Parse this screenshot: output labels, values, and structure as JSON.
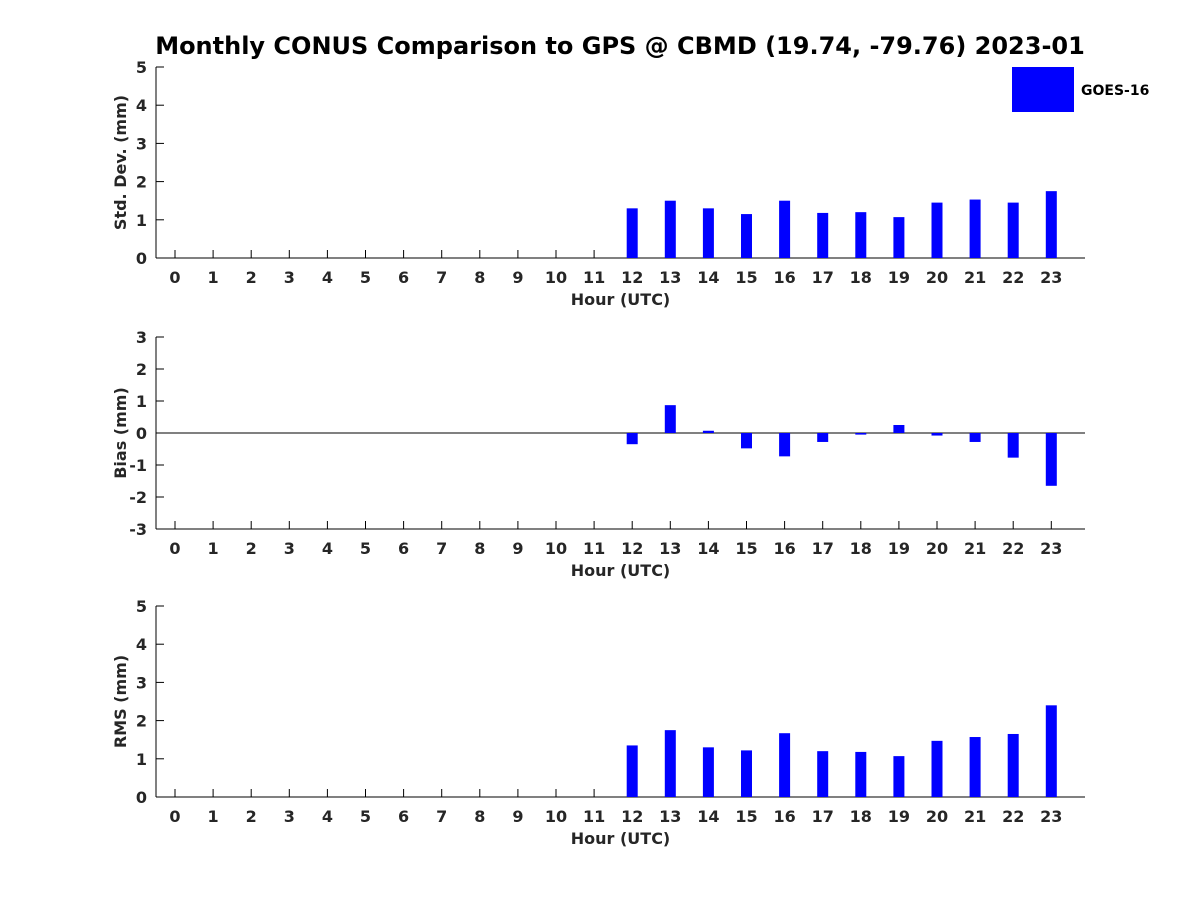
{
  "title": "Monthly CONUS Comparison to GPS @ CBMD (19.74, -79.76) 2023-01",
  "legend": {
    "label": "GOES-16",
    "placement": "top-right",
    "color": "#0000ff"
  },
  "colors": {
    "bar": "#0000ff",
    "axis": "#000000",
    "text": "#262626"
  },
  "chart_data": [
    {
      "type": "bar",
      "xlabel": "Hour (UTC)",
      "ylabel": "Std. Dev. (mm)",
      "ylim": [
        0,
        5
      ],
      "yticks": [
        0,
        1,
        2,
        3,
        4,
        5
      ],
      "grid": false,
      "categories": [
        "0",
        "1",
        "2",
        "3",
        "4",
        "5",
        "6",
        "7",
        "8",
        "9",
        "10",
        "11",
        "12",
        "13",
        "14",
        "15",
        "16",
        "17",
        "18",
        "19",
        "20",
        "21",
        "22",
        "23"
      ],
      "series": [
        {
          "name": "GOES-16",
          "values": [
            null,
            null,
            null,
            null,
            null,
            null,
            null,
            null,
            null,
            null,
            null,
            null,
            1.3,
            1.5,
            1.3,
            1.15,
            1.5,
            1.18,
            1.2,
            1.07,
            1.45,
            1.53,
            1.45,
            1.75
          ]
        }
      ]
    },
    {
      "type": "bar",
      "xlabel": "Hour (UTC)",
      "ylabel": "Bias (mm)",
      "ylim": [
        -3,
        3
      ],
      "yticks": [
        -3,
        -2,
        -1,
        0,
        1,
        2,
        3
      ],
      "grid": false,
      "zero_line": true,
      "categories": [
        "0",
        "1",
        "2",
        "3",
        "4",
        "5",
        "6",
        "7",
        "8",
        "9",
        "10",
        "11",
        "12",
        "13",
        "14",
        "15",
        "16",
        "17",
        "18",
        "19",
        "20",
        "21",
        "22",
        "23"
      ],
      "series": [
        {
          "name": "GOES-16",
          "values": [
            null,
            null,
            null,
            null,
            null,
            null,
            null,
            null,
            null,
            null,
            null,
            null,
            -0.35,
            0.87,
            0.07,
            -0.48,
            -0.73,
            -0.28,
            -0.05,
            0.25,
            -0.08,
            -0.28,
            -0.77,
            -1.65
          ]
        }
      ]
    },
    {
      "type": "bar",
      "xlabel": "Hour (UTC)",
      "ylabel": "RMS (mm)",
      "ylim": [
        0,
        5
      ],
      "yticks": [
        0,
        1,
        2,
        3,
        4,
        5
      ],
      "grid": false,
      "categories": [
        "0",
        "1",
        "2",
        "3",
        "4",
        "5",
        "6",
        "7",
        "8",
        "9",
        "10",
        "11",
        "12",
        "13",
        "14",
        "15",
        "16",
        "17",
        "18",
        "19",
        "20",
        "21",
        "22",
        "23"
      ],
      "series": [
        {
          "name": "GOES-16",
          "values": [
            null,
            null,
            null,
            null,
            null,
            null,
            null,
            null,
            null,
            null,
            null,
            null,
            1.35,
            1.75,
            1.3,
            1.22,
            1.67,
            1.2,
            1.18,
            1.07,
            1.47,
            1.57,
            1.65,
            2.4
          ]
        }
      ]
    }
  ]
}
